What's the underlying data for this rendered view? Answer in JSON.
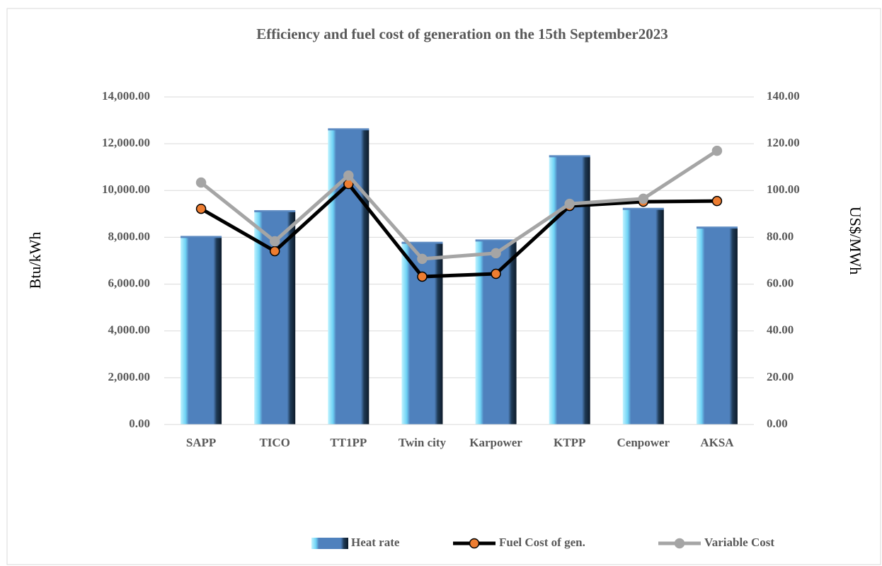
{
  "chart_data": {
    "type": "bar_line",
    "title": "Efficiency and fuel cost of generation on the 15th  September2023",
    "y_label": "Btu/kWh",
    "y2_label": "US$/MWh",
    "categories": [
      "SAPP",
      "TICO",
      "TT1PP",
      "Twin city",
      "Karpower",
      "KTPP",
      "Cenpower",
      "AKSA"
    ],
    "series": [
      {
        "name": "Heat rate",
        "type": "bar",
        "color": "#4f81bd",
        "values": [
          8000,
          9100,
          12600,
          7750,
          7850,
          11450,
          9200,
          8400
        ]
      },
      {
        "name": "Fuel Cost of gen.",
        "type": "line",
        "axis": "y2",
        "color": "#000000",
        "marker_color": "#ed7d31",
        "values": [
          92.2,
          74.1,
          102.8,
          63.2,
          64.4,
          93.4,
          95.2,
          95.5
        ]
      },
      {
        "name": "Variable Cost",
        "type": "line",
        "axis": "y2",
        "color": "#a5a5a5",
        "marker_color": "#a5a5a5",
        "values": [
          103.4,
          78.3,
          106.4,
          70.8,
          73.2,
          94.3,
          96.5,
          117.0
        ]
      }
    ],
    "ylim": [
      0,
      14000
    ],
    "yticks": [
      {
        "value": 0,
        "label": "0.00"
      },
      {
        "value": 2000,
        "label": "2,000.00"
      },
      {
        "value": 4000,
        "label": "4,000.00"
      },
      {
        "value": 6000,
        "label": "6,000.00"
      },
      {
        "value": 8000,
        "label": "8,000.00"
      },
      {
        "value": 10000,
        "label": "10,000.00"
      },
      {
        "value": 12000,
        "label": "12,000.00"
      },
      {
        "value": 14000,
        "label": "14,000.00"
      }
    ],
    "y2lim": [
      0,
      140
    ],
    "y2ticks": [
      {
        "value": 0,
        "label": "0.00"
      },
      {
        "value": 20,
        "label": "20.00"
      },
      {
        "value": 40,
        "label": "40.00"
      },
      {
        "value": 60,
        "label": "60.00"
      },
      {
        "value": 80,
        "label": "80.00"
      },
      {
        "value": 100,
        "label": "100.00"
      },
      {
        "value": 120,
        "label": "120.00"
      },
      {
        "value": 140,
        "label": "140.00"
      }
    ],
    "grid": true,
    "legend": "bottom"
  }
}
